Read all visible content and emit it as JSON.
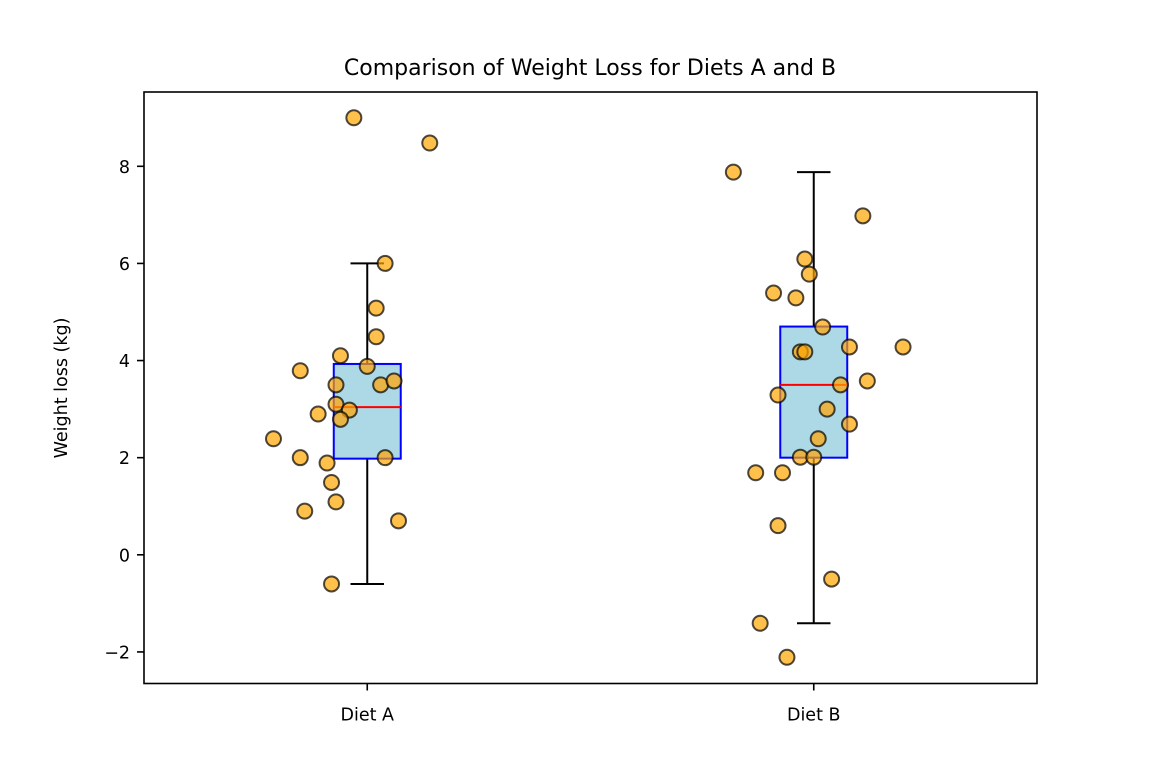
{
  "chart_data": {
    "type": "box",
    "title": "Comparison of Weight Loss for Diets A and B",
    "xlabel": "",
    "ylabel": "Weight loss (kg)",
    "categories": [
      "Diet A",
      "Diet B"
    ],
    "xlim": [
      0.5,
      2.5
    ],
    "ylim": [
      -2.65,
      9.53
    ],
    "yticks": [
      -2,
      0,
      2,
      4,
      6,
      8
    ],
    "ytick_labels": [
      "−2",
      "0",
      "2",
      "4",
      "6",
      "8"
    ],
    "grid": false,
    "legend": "none",
    "colors": {
      "box_fill": "#add8e6",
      "box_edge": "#0000ff",
      "median": "#ff0000",
      "whisker": "#000000",
      "point_fill": "#ffa500",
      "point_edge": "#000000",
      "point_alpha": 0.7
    },
    "boxes": [
      {
        "name": "Diet A",
        "q1": 1.98,
        "median": 3.04,
        "q3": 3.93,
        "whisker_low": -0.6,
        "whisker_high": 6.0
      },
      {
        "name": "Diet B",
        "q1": 2.0,
        "median": 3.5,
        "q3": 4.7,
        "whisker_low": -1.41,
        "whisker_high": 7.88
      }
    ],
    "series": [
      {
        "name": "Diet A",
        "points": [
          {
            "x": 0.97,
            "y": 9.0
          },
          {
            "x": 1.14,
            "y": 8.48
          },
          {
            "x": 1.04,
            "y": 6.0
          },
          {
            "x": 1.02,
            "y": 5.08
          },
          {
            "x": 1.02,
            "y": 4.49
          },
          {
            "x": 0.94,
            "y": 4.1
          },
          {
            "x": 0.85,
            "y": 3.79
          },
          {
            "x": 1.0,
            "y": 3.88
          },
          {
            "x": 0.93,
            "y": 3.5
          },
          {
            "x": 1.03,
            "y": 3.5
          },
          {
            "x": 1.06,
            "y": 3.58
          },
          {
            "x": 0.93,
            "y": 3.1
          },
          {
            "x": 0.96,
            "y": 2.98
          },
          {
            "x": 0.89,
            "y": 2.9
          },
          {
            "x": 0.94,
            "y": 2.79
          },
          {
            "x": 0.79,
            "y": 2.39
          },
          {
            "x": 0.85,
            "y": 2.0
          },
          {
            "x": 1.04,
            "y": 2.0
          },
          {
            "x": 0.91,
            "y": 1.89
          },
          {
            "x": 0.92,
            "y": 1.49
          },
          {
            "x": 0.93,
            "y": 1.09
          },
          {
            "x": 0.86,
            "y": 0.9
          },
          {
            "x": 1.07,
            "y": 0.7
          },
          {
            "x": 0.92,
            "y": -0.6
          }
        ]
      },
      {
        "name": "Diet B",
        "points": [
          {
            "x": 1.82,
            "y": 7.88
          },
          {
            "x": 2.11,
            "y": 6.98
          },
          {
            "x": 1.98,
            "y": 6.09
          },
          {
            "x": 1.99,
            "y": 5.78
          },
          {
            "x": 1.91,
            "y": 5.39
          },
          {
            "x": 1.96,
            "y": 5.29
          },
          {
            "x": 2.02,
            "y": 4.69
          },
          {
            "x": 2.08,
            "y": 4.28
          },
          {
            "x": 2.2,
            "y": 4.28
          },
          {
            "x": 1.97,
            "y": 4.18
          },
          {
            "x": 1.98,
            "y": 4.18
          },
          {
            "x": 2.12,
            "y": 3.58
          },
          {
            "x": 2.06,
            "y": 3.5
          },
          {
            "x": 1.92,
            "y": 3.29
          },
          {
            "x": 2.03,
            "y": 3.0
          },
          {
            "x": 2.08,
            "y": 2.69
          },
          {
            "x": 2.01,
            "y": 2.39
          },
          {
            "x": 1.97,
            "y": 2.01
          },
          {
            "x": 2.0,
            "y": 2.01
          },
          {
            "x": 1.87,
            "y": 1.69
          },
          {
            "x": 1.93,
            "y": 1.69
          },
          {
            "x": 1.92,
            "y": 0.6
          },
          {
            "x": 2.04,
            "y": -0.5
          },
          {
            "x": 1.88,
            "y": -1.41
          },
          {
            "x": 1.94,
            "y": -2.11
          }
        ]
      }
    ]
  }
}
